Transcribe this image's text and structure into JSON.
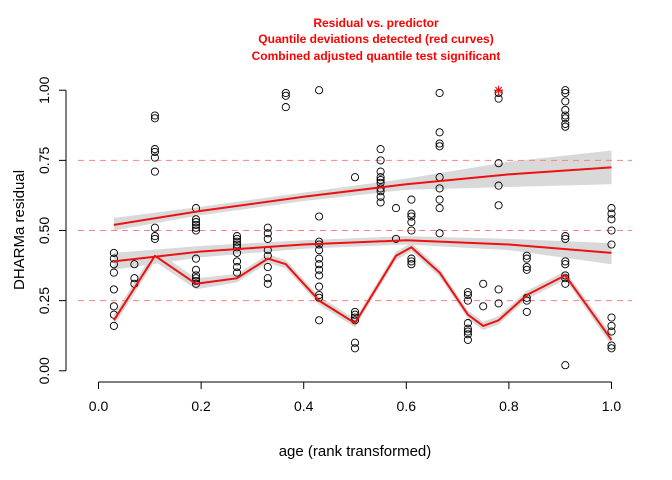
{
  "chart_data": {
    "type": "scatter",
    "title_lines": [
      "Residual vs. predictor",
      "Quantile deviations detected (red curves)",
      "Combined adjusted quantile test significant"
    ],
    "xlabel": "age (rank transformed)",
    "ylabel": "DHARMa residual",
    "xlim": [
      -0.04,
      1.04
    ],
    "ylim": [
      -0.04,
      1.04
    ],
    "x_ticks": [
      "0.0",
      "0.2",
      "0.4",
      "0.6",
      "0.8",
      "1.0"
    ],
    "y_ticks": [
      "0.00",
      "0.25",
      "0.50",
      "0.75",
      "1.00"
    ],
    "reference_lines": [
      0.25,
      0.5,
      0.75
    ],
    "grid": false,
    "colors": {
      "title": "#ff0000",
      "curve": "#ee1111",
      "band": "#d9d9d9",
      "reference": "#ff8080",
      "points": "#000000",
      "outlier": "#ff0000"
    },
    "points": [
      [
        0.03,
        0.42
      ],
      [
        0.03,
        0.4
      ],
      [
        0.03,
        0.38
      ],
      [
        0.03,
        0.35
      ],
      [
        0.03,
        0.29
      ],
      [
        0.03,
        0.23
      ],
      [
        0.03,
        0.2
      ],
      [
        0.03,
        0.16
      ],
      [
        0.07,
        0.38
      ],
      [
        0.07,
        0.33
      ],
      [
        0.07,
        0.31
      ],
      [
        0.11,
        0.91
      ],
      [
        0.11,
        0.9
      ],
      [
        0.11,
        0.79
      ],
      [
        0.11,
        0.78
      ],
      [
        0.11,
        0.76
      ],
      [
        0.11,
        0.71
      ],
      [
        0.11,
        0.51
      ],
      [
        0.11,
        0.48
      ],
      [
        0.11,
        0.47
      ],
      [
        0.19,
        0.58
      ],
      [
        0.19,
        0.54
      ],
      [
        0.19,
        0.53
      ],
      [
        0.19,
        0.52
      ],
      [
        0.19,
        0.51
      ],
      [
        0.19,
        0.5
      ],
      [
        0.19,
        0.4
      ],
      [
        0.19,
        0.36
      ],
      [
        0.19,
        0.34
      ],
      [
        0.19,
        0.33
      ],
      [
        0.19,
        0.32
      ],
      [
        0.19,
        0.31
      ],
      [
        0.27,
        0.48
      ],
      [
        0.27,
        0.47
      ],
      [
        0.27,
        0.46
      ],
      [
        0.27,
        0.45
      ],
      [
        0.27,
        0.44
      ],
      [
        0.27,
        0.42
      ],
      [
        0.27,
        0.39
      ],
      [
        0.27,
        0.37
      ],
      [
        0.27,
        0.35
      ],
      [
        0.33,
        0.51
      ],
      [
        0.33,
        0.49
      ],
      [
        0.33,
        0.47
      ],
      [
        0.33,
        0.43
      ],
      [
        0.33,
        0.41
      ],
      [
        0.33,
        0.37
      ],
      [
        0.33,
        0.33
      ],
      [
        0.33,
        0.31
      ],
      [
        0.365,
        0.99
      ],
      [
        0.365,
        0.98
      ],
      [
        0.365,
        0.94
      ],
      [
        0.43,
        1.0
      ],
      [
        0.43,
        0.55
      ],
      [
        0.43,
        0.46
      ],
      [
        0.43,
        0.45
      ],
      [
        0.43,
        0.43
      ],
      [
        0.43,
        0.4
      ],
      [
        0.43,
        0.38
      ],
      [
        0.43,
        0.36
      ],
      [
        0.43,
        0.34
      ],
      [
        0.43,
        0.3
      ],
      [
        0.43,
        0.27
      ],
      [
        0.43,
        0.26
      ],
      [
        0.43,
        0.18
      ],
      [
        0.5,
        0.69
      ],
      [
        0.5,
        0.21
      ],
      [
        0.5,
        0.2
      ],
      [
        0.5,
        0.19
      ],
      [
        0.5,
        0.18
      ],
      [
        0.5,
        0.1
      ],
      [
        0.5,
        0.08
      ],
      [
        0.55,
        0.79
      ],
      [
        0.55,
        0.75
      ],
      [
        0.55,
        0.71
      ],
      [
        0.55,
        0.69
      ],
      [
        0.55,
        0.68
      ],
      [
        0.55,
        0.67
      ],
      [
        0.55,
        0.65
      ],
      [
        0.55,
        0.64
      ],
      [
        0.55,
        0.62
      ],
      [
        0.55,
        0.6
      ],
      [
        0.58,
        0.58
      ],
      [
        0.58,
        0.47
      ],
      [
        0.61,
        0.61
      ],
      [
        0.61,
        0.56
      ],
      [
        0.61,
        0.55
      ],
      [
        0.61,
        0.53
      ],
      [
        0.61,
        0.5
      ],
      [
        0.61,
        0.4
      ],
      [
        0.61,
        0.39
      ],
      [
        0.61,
        0.38
      ],
      [
        0.665,
        0.99
      ],
      [
        0.665,
        0.85
      ],
      [
        0.665,
        0.81
      ],
      [
        0.665,
        0.8
      ],
      [
        0.665,
        0.69
      ],
      [
        0.665,
        0.65
      ],
      [
        0.665,
        0.61
      ],
      [
        0.665,
        0.58
      ],
      [
        0.665,
        0.49
      ],
      [
        0.72,
        0.28
      ],
      [
        0.72,
        0.27
      ],
      [
        0.72,
        0.25
      ],
      [
        0.72,
        0.17
      ],
      [
        0.72,
        0.15
      ],
      [
        0.72,
        0.14
      ],
      [
        0.72,
        0.13
      ],
      [
        0.72,
        0.11
      ],
      [
        0.75,
        0.31
      ],
      [
        0.75,
        0.23
      ],
      [
        0.78,
        0.99
      ],
      [
        0.78,
        0.97
      ],
      [
        0.78,
        0.74
      ],
      [
        0.78,
        0.66
      ],
      [
        0.78,
        0.59
      ],
      [
        0.78,
        0.29
      ],
      [
        0.78,
        0.24
      ],
      [
        0.835,
        0.41
      ],
      [
        0.835,
        0.4
      ],
      [
        0.835,
        0.37
      ],
      [
        0.835,
        0.36
      ],
      [
        0.835,
        0.26
      ],
      [
        0.835,
        0.25
      ],
      [
        0.835,
        0.21
      ],
      [
        0.91,
        1.0
      ],
      [
        0.91,
        0.99
      ],
      [
        0.91,
        0.96
      ],
      [
        0.91,
        0.93
      ],
      [
        0.91,
        0.91
      ],
      [
        0.91,
        0.9
      ],
      [
        0.91,
        0.88
      ],
      [
        0.91,
        0.87
      ],
      [
        0.91,
        0.48
      ],
      [
        0.91,
        0.47
      ],
      [
        0.91,
        0.39
      ],
      [
        0.91,
        0.38
      ],
      [
        0.91,
        0.34
      ],
      [
        0.91,
        0.33
      ],
      [
        0.91,
        0.31
      ],
      [
        0.91,
        0.02
      ],
      [
        1.0,
        0.58
      ],
      [
        1.0,
        0.56
      ],
      [
        1.0,
        0.54
      ],
      [
        1.0,
        0.5
      ],
      [
        1.0,
        0.45
      ],
      [
        1.0,
        0.19
      ],
      [
        1.0,
        0.16
      ],
      [
        1.0,
        0.14
      ],
      [
        1.0,
        0.09
      ],
      [
        1.0,
        0.08
      ]
    ],
    "outliers": [
      [
        0.78,
        1.0
      ]
    ],
    "quantile_curves": [
      {
        "quantile": 0.75,
        "x": [
          0.03,
          0.2,
          0.4,
          0.6,
          0.8,
          1.0
        ],
        "y": [
          0.52,
          0.57,
          0.62,
          0.665,
          0.7,
          0.725
        ],
        "band_lower": [
          0.5,
          0.555,
          0.605,
          0.645,
          0.655,
          0.665
        ],
        "band_upper": [
          0.545,
          0.585,
          0.635,
          0.685,
          0.745,
          0.785
        ]
      },
      {
        "quantile": 0.5,
        "x": [
          0.03,
          0.2,
          0.4,
          0.6,
          0.8,
          1.0
        ],
        "y": [
          0.39,
          0.425,
          0.45,
          0.465,
          0.45,
          0.42
        ],
        "band_lower": [
          0.36,
          0.405,
          0.435,
          0.45,
          0.43,
          0.38
        ],
        "band_upper": [
          0.42,
          0.445,
          0.465,
          0.48,
          0.47,
          0.455
        ]
      },
      {
        "quantile": 0.25,
        "x": [
          0.03,
          0.11,
          0.19,
          0.27,
          0.33,
          0.365,
          0.43,
          0.5,
          0.58,
          0.61,
          0.665,
          0.72,
          0.75,
          0.78,
          0.835,
          0.91,
          1.0
        ],
        "y": [
          0.18,
          0.41,
          0.31,
          0.33,
          0.4,
          0.38,
          0.25,
          0.17,
          0.41,
          0.44,
          0.35,
          0.2,
          0.16,
          0.18,
          0.27,
          0.34,
          0.11
        ],
        "band_lower": [
          0.16,
          0.39,
          0.29,
          0.315,
          0.385,
          0.365,
          0.235,
          0.155,
          0.395,
          0.425,
          0.335,
          0.185,
          0.145,
          0.165,
          0.255,
          0.325,
          0.09
        ],
        "band_upper": [
          0.2,
          0.43,
          0.33,
          0.345,
          0.415,
          0.395,
          0.265,
          0.185,
          0.425,
          0.455,
          0.365,
          0.215,
          0.175,
          0.195,
          0.285,
          0.355,
          0.13
        ]
      }
    ]
  }
}
